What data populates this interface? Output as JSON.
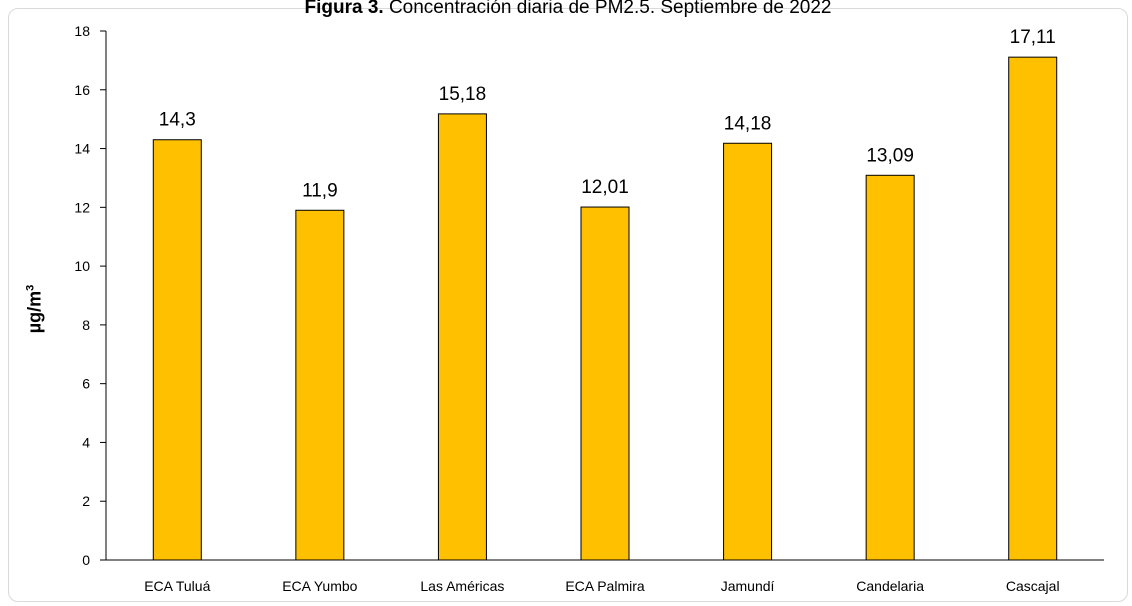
{
  "chart_data": {
    "type": "bar",
    "title_bold": "Figura 3.",
    "title_rest": " Concentración diaria de PM2.5. Septiembre de 2022",
    "ylabel_base": "µg/m",
    "ylabel_sup": "3",
    "categories": [
      "ECA Tuluá",
      "ECA Yumbo",
      "Las Américas",
      "ECA Palmira",
      "Jamundí",
      "Candelaria",
      "Cascajal"
    ],
    "values": [
      14.3,
      11.9,
      15.18,
      12.01,
      14.18,
      13.09,
      17.11
    ],
    "data_labels": [
      "14,3",
      "11,9",
      "15,18",
      "12,01",
      "14,18",
      "13,09",
      "17,11"
    ],
    "ylim": [
      0,
      18
    ],
    "yticks": [
      0,
      2,
      4,
      6,
      8,
      10,
      12,
      14,
      16,
      18
    ],
    "grid": false,
    "bar_color": "#ffc000",
    "bar_edge_color": "#000000"
  }
}
